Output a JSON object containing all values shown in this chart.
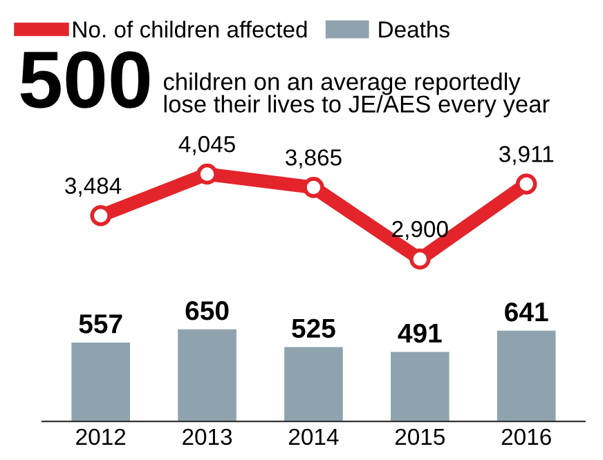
{
  "chart_data": [
    {
      "type": "line",
      "title": "500",
      "subtitle": "children on an average reportedly\nlose their lives to JE/AES every year",
      "categories": [
        null,
        null,
        null,
        null,
        null
      ],
      "series": [
        {
          "name": "No. of children affected",
          "color": "#e3242b",
          "values": [
            3484,
            4045,
            3865,
            2900,
            3911
          ],
          "value_labels": [
            "3,484",
            "4,045",
            "3,865",
            "2,900",
            "3,911"
          ]
        }
      ],
      "marker": "circle",
      "legend": "top left",
      "tick_labels": false
    },
    {
      "type": "bar",
      "categories": [
        "2012",
        "2013",
        "2014",
        "2015",
        "2016"
      ],
      "series": [
        {
          "name": "Deaths",
          "color": "#8fa3ae",
          "values": [
            557,
            650,
            525,
            491,
            641
          ]
        }
      ],
      "data_labels": true,
      "legend": "top right",
      "tick_labels": "x"
    }
  ]
}
